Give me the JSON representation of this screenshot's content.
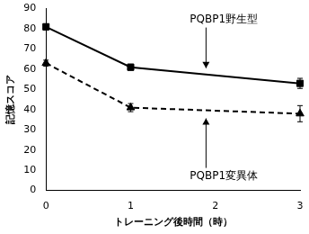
{
  "chart_data": {
    "type": "line",
    "x_label": "トレーニング後時間（時）",
    "y_label": "記憶スコア",
    "x": [
      0,
      1,
      3
    ],
    "series": [
      {
        "name": "PQBP1野生型",
        "color": "#000000",
        "marker": "square",
        "line_style": "solid",
        "values": [
          81,
          61,
          53
        ],
        "errors": [
          1.5,
          1.5,
          2.5
        ]
      },
      {
        "name": "PQBP1変異体",
        "color": "#000000",
        "marker": "triangle",
        "line_style": "dashed",
        "values": [
          63,
          41,
          38
        ],
        "errors": [
          1.5,
          2,
          4
        ]
      }
    ],
    "xlim": [
      0,
      3
    ],
    "xticks": [
      0,
      1,
      2,
      3
    ],
    "ylim": [
      0,
      90
    ],
    "yticks": [
      0,
      10,
      20,
      30,
      40,
      50,
      60,
      70,
      80,
      90
    ],
    "grid": false
  }
}
